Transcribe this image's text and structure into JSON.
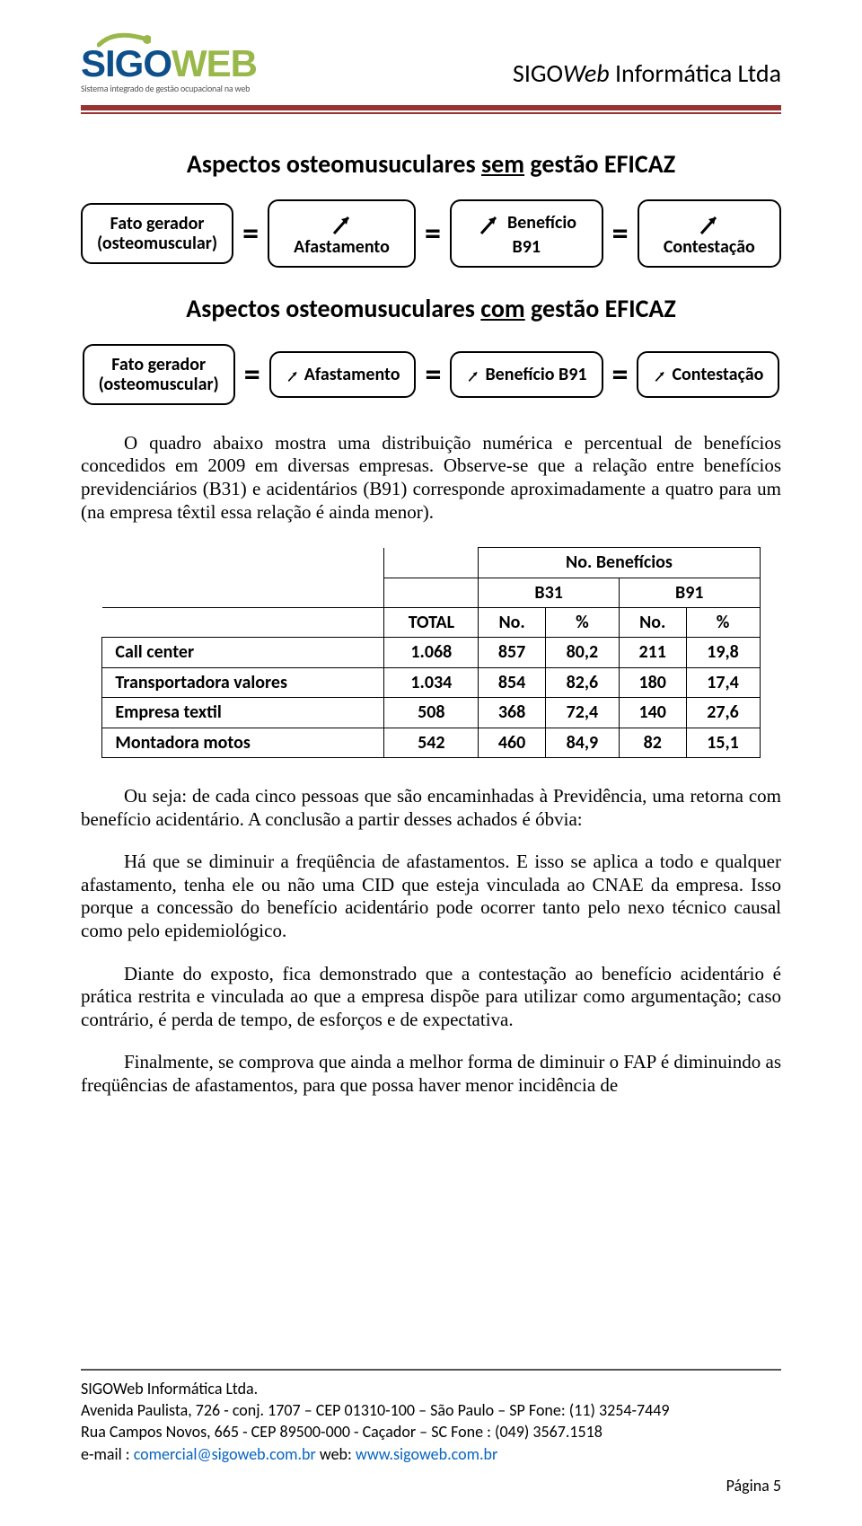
{
  "header": {
    "logo_text_sigo": "SIGO",
    "logo_text_web": "WEB",
    "logo_color_sigo": "#0d4f8b",
    "logo_color_web": "#99b84a",
    "logo_tagline": "Sistema integrado de gestão ocupacional na web",
    "title_p1": "SIGO",
    "title_p2": "Web",
    "title_p3": " Informática Ltda",
    "rule_color": "#993333"
  },
  "diagrams": {
    "sem": {
      "title_prefix": "Aspectos osteomusuculares ",
      "title_underlined": "sem",
      "title_suffix": " gestão EFICAZ",
      "boxes": [
        {
          "line1": "Fato gerador",
          "line2": "(osteomuscular)"
        },
        {
          "line1": "Afastamento"
        },
        {
          "line1": "Benefício B91"
        },
        {
          "line1": "Contestação"
        }
      ],
      "arrow_scale": 1.0
    },
    "com": {
      "title_prefix": "Aspectos osteomusuculares ",
      "title_underlined": "com",
      "title_suffix": " gestão EFICAZ",
      "boxes": [
        {
          "line1": "Fato gerador",
          "line2": "(osteomuscular)"
        },
        {
          "line1": "Afastamento"
        },
        {
          "line1": "Benefício B91"
        },
        {
          "line1": "Contestação"
        }
      ],
      "arrow_scale": 0.55
    },
    "eq_symbol": "="
  },
  "paragraphs": {
    "p1": "O quadro abaixo mostra uma distribuição numérica e percentual de benefícios concedidos em 2009 em diversas empresas. Observe-se que a relação entre benefícios previdenciários (B31) e acidentários (B91) corresponde aproximadamente a quatro para um (na empresa têxtil essa relação é ainda menor).",
    "p2": "Ou seja: de cada cinco pessoas que são encaminhadas à Previdência, uma retorna com benefício acidentário. A conclusão a partir desses achados é óbvia:",
    "p3": "Há que se diminuir a freqüência de afastamentos. E isso se aplica a todo e qualquer afastamento, tenha ele ou não uma CID que esteja vinculada ao CNAE da empresa. Isso porque a concessão do benefício acidentário pode ocorrer tanto pelo nexo técnico causal como pelo epidemiológico.",
    "p4": "Diante do exposto, fica demonstrado que a contestação ao benefício acidentário é prática restrita e vinculada ao que a empresa dispõe para utilizar como argumentação; caso contrário, é perda de tempo, de esforços e de expectativa.",
    "p5": "Finalmente, se comprova que ainda a melhor forma de diminuir o FAP é diminuindo as freqüências de afastamentos, para que possa haver menor incidência de"
  },
  "table": {
    "header_top": "No. Benefícios",
    "header_b31": "B31",
    "header_b91": "B91",
    "header_total": "TOTAL",
    "header_no": "No.",
    "header_pct": "%",
    "rows": [
      {
        "label": "Call center",
        "total": "1.068",
        "b31_no": "857",
        "b31_pct": "80,2",
        "b91_no": "211",
        "b91_pct": "19,8"
      },
      {
        "label": "Transportadora valores",
        "total": "1.034",
        "b31_no": "854",
        "b31_pct": "82,6",
        "b91_no": "180",
        "b91_pct": "17,4"
      },
      {
        "label": "Empresa textil",
        "total": "508",
        "b31_no": "368",
        "b31_pct": "72,4",
        "b91_no": "140",
        "b91_pct": "27,6"
      },
      {
        "label": "Montadora motos",
        "total": "542",
        "b31_no": "460",
        "b31_pct": "84,9",
        "b91_no": "82",
        "b91_pct": "15,1"
      }
    ]
  },
  "footer": {
    "company": "SIGOWeb Informática Ltda.",
    "addr1": "Avenida Paulista, 726 - conj. 1707 – CEP 01310-100 – São Paulo – SP   Fone: (11) 3254-7449",
    "addr2": "Rua Campos Novos, 665 - CEP 89500-000 -  Caçador – SC   Fone : (049) 3567.1518",
    "email_label": "e-mail : ",
    "email": "comercial@sigoweb.com.br",
    "web_label": "   web: ",
    "web": "www.sigoweb.com.br",
    "page_label": "Página 5",
    "link_color": "#0563c1"
  }
}
